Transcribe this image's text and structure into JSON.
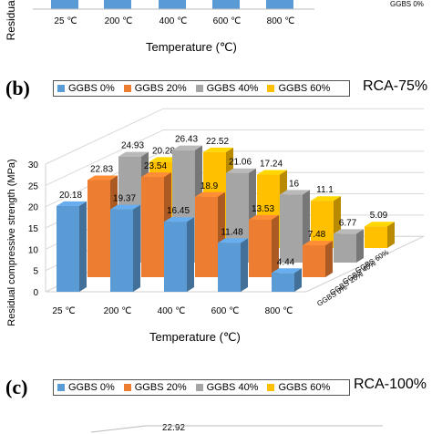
{
  "panel_a_partial": {
    "categories": [
      "25 ℃",
      "200 ℃",
      "400 ℃",
      "600 ℃",
      "800 ℃"
    ],
    "ylabel": "Residual",
    "xlabel": "Temperature (℃)",
    "series_label": "GGBS 0%"
  },
  "panel_b": {
    "letter": "(b)",
    "title": "RCA-75%"
  },
  "panel_c_partial": {
    "letter": "(c)",
    "title": "RCA-100%",
    "visible_value": "22.92"
  },
  "legend": [
    {
      "name": "GGBS 0%",
      "color": "#5b9bd5"
    },
    {
      "name": "GGBS 20%",
      "color": "#ed7d31"
    },
    {
      "name": "GGBS 40%",
      "color": "#a5a5a5"
    },
    {
      "name": "GGBS 60%",
      "color": "#ffc000"
    }
  ],
  "chart_data": {
    "type": "bar",
    "title": "RCA-75%",
    "xlabel": "Temperature (℃)",
    "ylabel": "Residual compressive strength (MPa)",
    "ylim": [
      0,
      30
    ],
    "yticks": [
      "0",
      "5",
      "10",
      "15",
      "20",
      "25",
      "30"
    ],
    "categories": [
      "25 ℃",
      "200 ℃",
      "400 ℃",
      "600 ℃",
      "800 ℃"
    ],
    "depth_labels": [
      "GGBS 0%",
      "GGBS 20%",
      "GGBS 40%",
      "GGBS 60%"
    ],
    "grid": true,
    "legend_placement": "top",
    "series": [
      {
        "name": "GGBS 0%",
        "color": "#5b9bd5",
        "values": [
          20.18,
          19.37,
          16.45,
          11.48,
          4.44
        ]
      },
      {
        "name": "GGBS 20%",
        "color": "#ed7d31",
        "values": [
          22.83,
          23.54,
          18.9,
          13.53,
          7.48
        ]
      },
      {
        "name": "GGBS 40%",
        "color": "#a5a5a5",
        "values": [
          24.93,
          26.43,
          21.06,
          16,
          6.77
        ]
      },
      {
        "name": "GGBS 60%",
        "color": "#ffc000",
        "values": [
          20.28,
          22.52,
          17.24,
          11.1,
          5.09
        ]
      }
    ]
  }
}
